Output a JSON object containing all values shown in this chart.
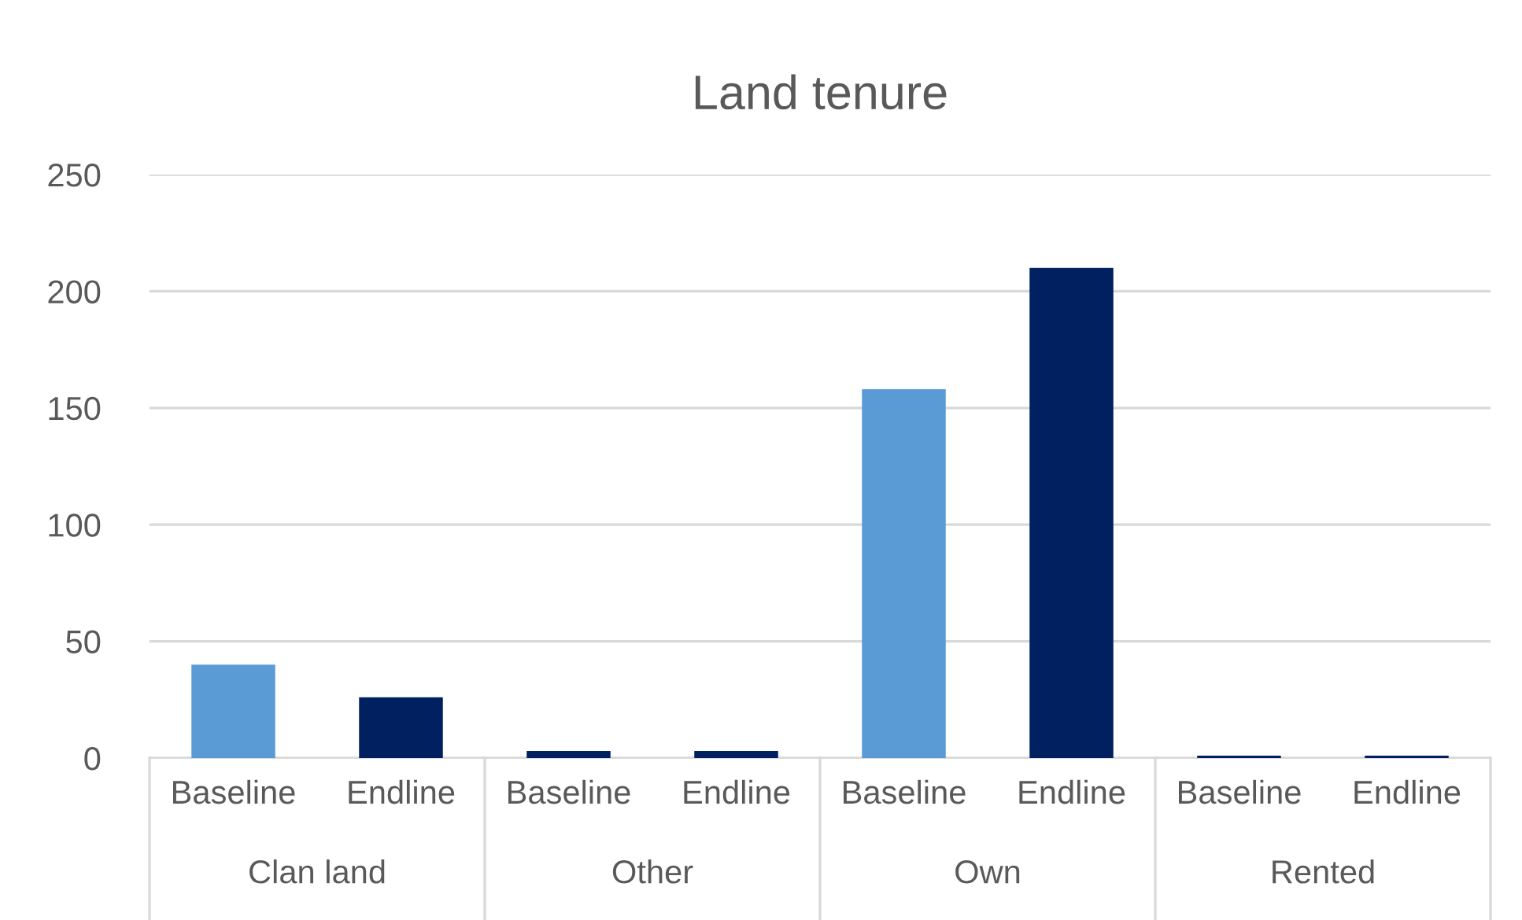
{
  "chart_data": {
    "type": "bar",
    "title": "Land tenure",
    "categories": [
      "Baseline",
      "Endline",
      "Baseline",
      "Endline",
      "Baseline",
      "Endline",
      "Baseline",
      "Endline"
    ],
    "values": [
      40,
      26,
      3,
      3,
      158,
      210,
      1,
      1
    ],
    "colors": [
      "#5b9bd5",
      "#002060",
      "#002060",
      "#002060",
      "#5b9bd5",
      "#002060",
      "#002060",
      "#002060"
    ],
    "annotations": [
      "Clan land",
      "Other",
      "Own",
      "Rented"
    ],
    "ylim": [
      0,
      250
    ],
    "yticks": [
      0,
      50,
      100,
      150,
      200,
      250
    ],
    "grid": "y"
  }
}
